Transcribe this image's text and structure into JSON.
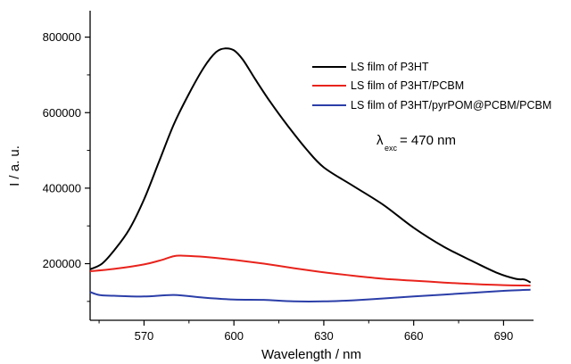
{
  "chart_data": {
    "type": "line",
    "xlabel": "Wavelength / nm",
    "ylabel": "I / a. u.",
    "xlim": [
      552,
      700
    ],
    "ylim": [
      50000,
      870000
    ],
    "xticks": [
      570,
      600,
      630,
      660,
      690
    ],
    "xtick_labels": [
      "570",
      "600",
      "630",
      "660",
      "690"
    ],
    "yticks": [
      200000,
      400000,
      600000,
      800000
    ],
    "ytick_labels": [
      "200000",
      "400000",
      "600000",
      "800000"
    ],
    "grid": false,
    "legend_position": "top-right",
    "annotation": {
      "main": "λ",
      "sub": "exc",
      "rest": "= 470 nm"
    },
    "series": [
      {
        "name": "LS film of P3HT",
        "color": "#000000",
        "x": [
          552,
          556,
          560,
          565,
          570,
          575,
          580,
          585,
          590,
          594,
          597,
          600,
          603,
          607,
          612,
          618,
          624,
          630,
          640,
          650,
          660,
          670,
          680,
          688,
          694,
          697,
          699
        ],
        "y": [
          185000,
          200000,
          235000,
          290000,
          370000,
          470000,
          570000,
          650000,
          720000,
          760000,
          770000,
          765000,
          740000,
          690000,
          630000,
          565000,
          505000,
          455000,
          405000,
          355000,
          295000,
          245000,
          205000,
          175000,
          160000,
          158000,
          150000
        ]
      },
      {
        "name": "LS film of P3HT/PCBM",
        "color": "#e8231c",
        "x": [
          552,
          560,
          570,
          576,
          580,
          583,
          590,
          600,
          610,
          620,
          630,
          640,
          650,
          660,
          670,
          680,
          690,
          699
        ],
        "y": [
          180000,
          186000,
          198000,
          210000,
          220000,
          221000,
          218000,
          210000,
          200000,
          188000,
          177000,
          168000,
          160000,
          155000,
          150000,
          146000,
          143000,
          142000
        ]
      },
      {
        "name": "LS film of P3HT/pyrPOM@PCBM/PCBM",
        "color": "#2b3ea8",
        "x": [
          552,
          555,
          560,
          570,
          580,
          590,
          600,
          610,
          620,
          630,
          640,
          650,
          660,
          670,
          680,
          690,
          699
        ],
        "y": [
          125000,
          117000,
          115000,
          113000,
          117000,
          110000,
          105000,
          104000,
          100000,
          100000,
          103000,
          108000,
          113000,
          118000,
          123000,
          128000,
          131000
        ]
      }
    ]
  }
}
